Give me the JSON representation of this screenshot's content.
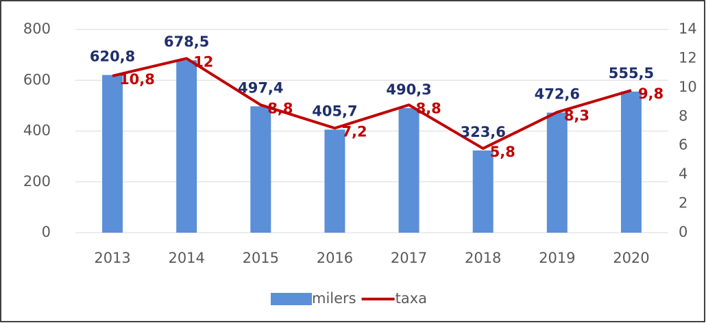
{
  "chart_data": {
    "type": "bar",
    "categories": [
      "2013",
      "2014",
      "2015",
      "2016",
      "2017",
      "2018",
      "2019",
      "2020"
    ],
    "series": [
      {
        "name": "milers",
        "type": "bar",
        "color": "#5b8fd7",
        "label_color": "#1f2f6b",
        "values": [
          620.8,
          678.5,
          497.4,
          405.7,
          490.3,
          323.6,
          472.6,
          555.5
        ],
        "value_labels": [
          "620,8",
          "678,5",
          "497,4",
          "405,7",
          "490,3",
          "323,6",
          "472,6",
          "555,5"
        ]
      },
      {
        "name": "taxa",
        "type": "line",
        "axis": "y2",
        "color": "#c00000",
        "label_color": "#c00000",
        "values": [
          10.8,
          12,
          8.8,
          7.2,
          8.8,
          5.8,
          8.3,
          9.8
        ],
        "value_labels": [
          "10,8",
          "12",
          "8,8",
          "7,2",
          "8,8",
          "5,8",
          "8,3",
          "9,8"
        ]
      }
    ],
    "ylim": [
      0,
      800
    ],
    "yticks": [
      0,
      200,
      400,
      600,
      800
    ],
    "y2lim": [
      0,
      14
    ],
    "y2ticks": [
      0,
      2,
      4,
      6,
      8,
      10,
      12,
      14
    ],
    "grid": true,
    "legend": "bottom"
  }
}
